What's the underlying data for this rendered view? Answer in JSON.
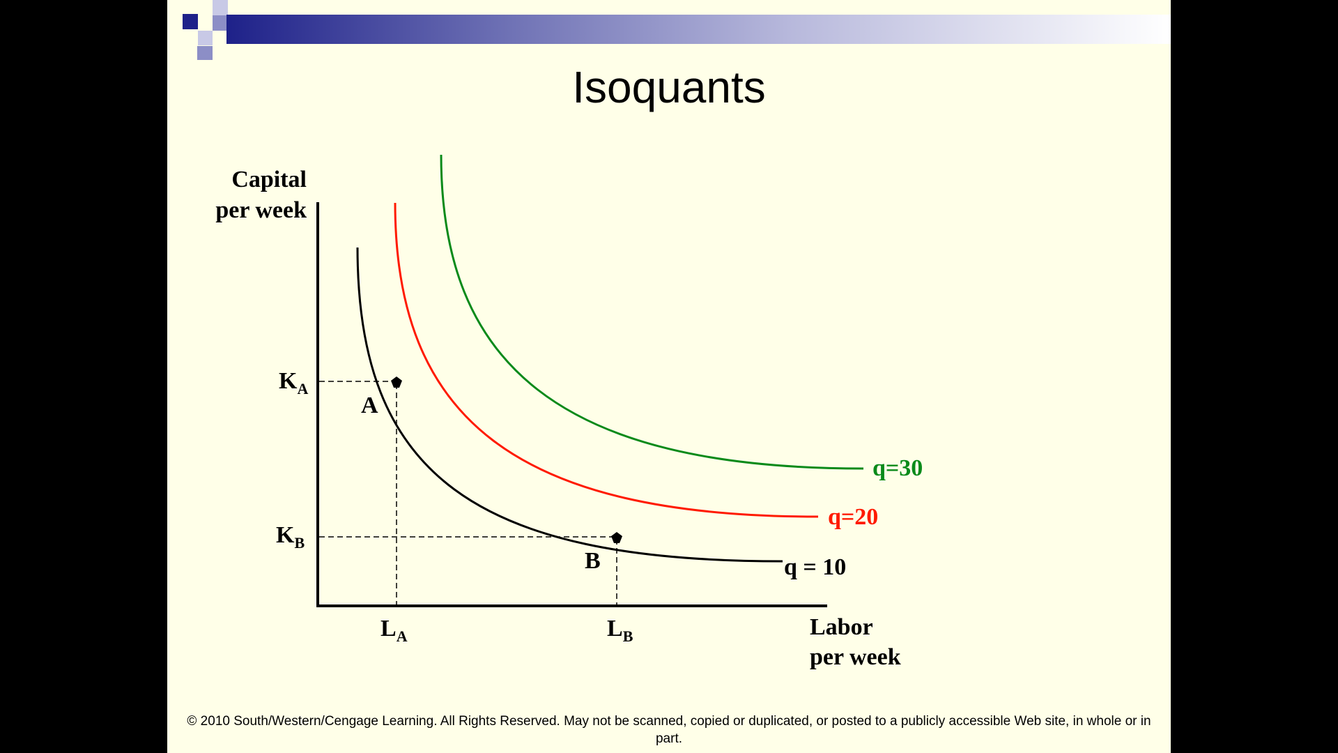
{
  "slide": {
    "title": "Isoquants",
    "copyright": "© 2010 South/Western/Cengage Learning. All Rights Reserved. May not be scanned, copied or duplicated, or posted to a publicly accessible Web site, in whole or in part.",
    "colors": {
      "background": "#FFFFE8",
      "header_dark": "#1E2189",
      "header_mid": "#8C8EC6",
      "header_light": "#C8C9E6"
    }
  },
  "chart_data": {
    "type": "line",
    "title": "",
    "ylabel": [
      "Capital",
      "per week"
    ],
    "xlabel": [
      "Labor",
      "per week"
    ],
    "grid": false,
    "series": [
      {
        "name": "q = 10",
        "color": "#000000"
      },
      {
        "name": "q=20",
        "color": "#FF1A00"
      },
      {
        "name": "q=30",
        "color": "#0A8A1A"
      }
    ],
    "points": [
      {
        "name": "A",
        "k_label": {
          "main": "K",
          "sub": "A"
        },
        "l_label": {
          "main": "L",
          "sub": "A"
        }
      },
      {
        "name": "B",
        "k_label": {
          "main": "K",
          "sub": "B"
        },
        "l_label": {
          "main": "L",
          "sub": "B"
        }
      }
    ]
  }
}
